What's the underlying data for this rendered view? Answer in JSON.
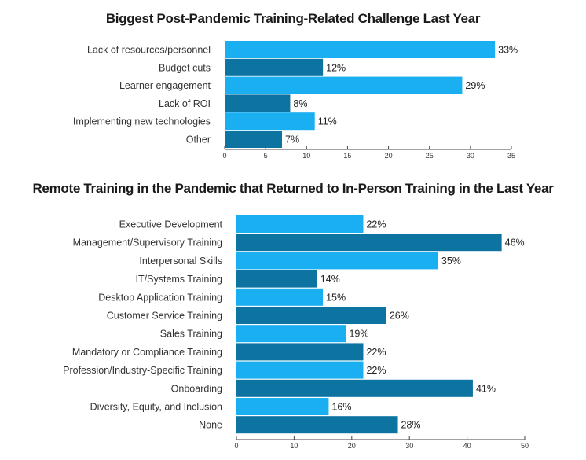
{
  "colors": {
    "light": "#1aaff0",
    "dark": "#0d73a1",
    "axis": "#444444"
  },
  "chart_data": [
    {
      "type": "bar",
      "orientation": "horizontal",
      "title": "Biggest Post-Pandemic Training-Related Challenge Last Year",
      "categories": [
        "Lack of resources/personnel",
        "Budget cuts",
        "Learner engagement",
        "Lack of ROI",
        "Implementing new technologies",
        "Other"
      ],
      "values": [
        33,
        12,
        29,
        8,
        11,
        7
      ],
      "value_suffix": "%",
      "xlim": [
        0,
        35
      ],
      "xticks": [
        0,
        5,
        10,
        15,
        20,
        25,
        30,
        35
      ],
      "xlabel": "",
      "ylabel": ""
    },
    {
      "type": "bar",
      "orientation": "horizontal",
      "title": "Remote Training in the Pandemic that Returned to In-Person Training in the Last Year",
      "categories": [
        "Executive Development",
        "Management/Supervisory Training",
        "Interpersonal Skills",
        "IT/Systems Training",
        "Desktop Application Training",
        "Customer Service Training",
        "Sales Training",
        "Mandatory or Compliance Training",
        "Profession/Industry-Specific Training",
        "Onboarding",
        "Diversity, Equity, and Inclusion",
        "None"
      ],
      "values": [
        22,
        46,
        35,
        14,
        15,
        26,
        19,
        22,
        22,
        41,
        16,
        28
      ],
      "value_suffix": "%",
      "xlim": [
        0,
        50
      ],
      "xticks": [
        0,
        10,
        20,
        30,
        40,
        50
      ],
      "xlabel": "",
      "ylabel": ""
    }
  ]
}
